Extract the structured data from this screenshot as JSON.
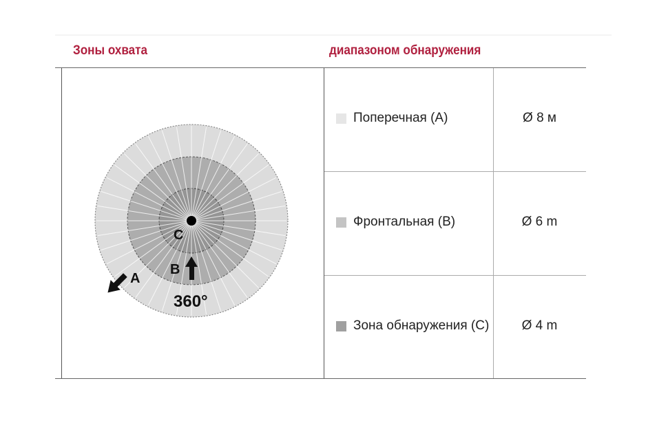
{
  "header": {
    "col1": "Зоны охвата",
    "col2": "диапазоном обнаружения"
  },
  "diagram": {
    "label_a": "A",
    "label_b": "B",
    "label_c": "C",
    "angle": "360°"
  },
  "rows": [
    {
      "label": "Поперечная (A)",
      "value": "Ø 8 м",
      "color": "#e6e6e6"
    },
    {
      "label": "Фронтальная (B)",
      "value": "Ø 6 m",
      "color": "#c4c4c4"
    },
    {
      "label": "Зона обнаружения (C)",
      "value": "Ø 4 m",
      "color": "#a0a0a0"
    }
  ]
}
